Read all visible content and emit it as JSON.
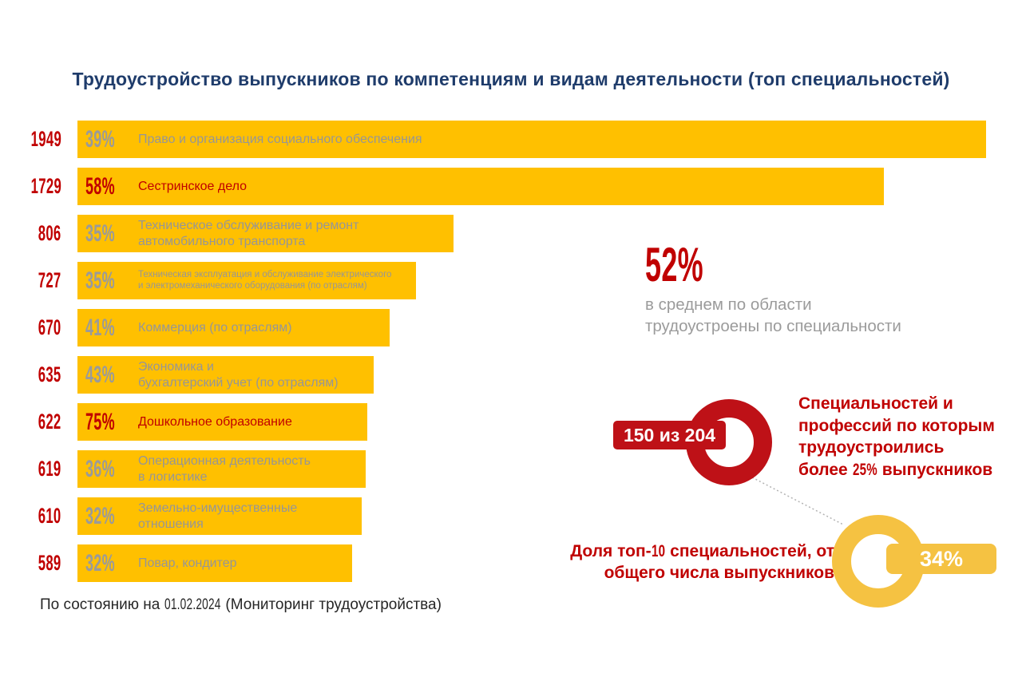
{
  "title": "Трудоустройство выпускников по компетенциям и видам деятельности (топ специальностей)",
  "colors": {
    "bar_yellow": "#ffc000",
    "donut_yellow": "#f5c242",
    "accent_red": "#c00000",
    "donut_red": "#be1117",
    "title_blue": "#1f3c6b",
    "gray_text": "#969696"
  },
  "bars": [
    {
      "count": "1949",
      "value": 1949,
      "pct": "39%",
      "label": "Право и организация  социального  обеспечения",
      "highlight": false,
      "small": false
    },
    {
      "count": "1729",
      "value": 1729,
      "pct": "58%",
      "label": "Сестринское  дело",
      "highlight": true,
      "small": false
    },
    {
      "count": "806",
      "value": 806,
      "pct": "35%",
      "label": "Техническое  обслуживание  и ремонт\nавтомобильного  транспорта",
      "highlight": false,
      "small": false
    },
    {
      "count": "727",
      "value": 727,
      "pct": "35%",
      "label": "Техническая эксплуатация и обслуживание электрического\nи электромеханического  оборудования (по  отраслям)",
      "highlight": false,
      "small": true
    },
    {
      "count": "670",
      "value": 670,
      "pct": "41%",
      "label": "Коммерция  (по отраслям)",
      "highlight": false,
      "small": false
    },
    {
      "count": "635",
      "value": 635,
      "pct": "43%",
      "label": "Экономика и\nбухгалтерский учет (по отраслям)",
      "highlight": false,
      "small": false
    },
    {
      "count": "622",
      "value": 622,
      "pct": "75%",
      "label": "Дошкольное  образование",
      "highlight": true,
      "small": false
    },
    {
      "count": "619",
      "value": 619,
      "pct": "36%",
      "label": "Операционная  деятельность\nв логистике",
      "highlight": false,
      "small": false
    },
    {
      "count": "610",
      "value": 610,
      "pct": "32%",
      "label": "Земельно-имущественные\nотношения",
      "highlight": false,
      "small": false
    },
    {
      "count": "589",
      "value": 589,
      "pct": "32%",
      "label": "Повар, кондитер",
      "highlight": false,
      "small": false
    }
  ],
  "stat": {
    "big": "52%",
    "line1": "в среднем по области",
    "line2": "трудоустроены по специальности"
  },
  "red_donut": {
    "badge": "150 из 204",
    "line1": "Специальностей и",
    "line2": "профессий по которым",
    "line3": "трудоустроились",
    "line4_pre": "более ",
    "line4_num": "25%",
    "line4_post": " выпускников"
  },
  "yellow_donut": {
    "badge": "34%",
    "line1_pre": "Доля топ-",
    "line1_num": "10",
    "line1_post": " специальностей, от",
    "line2": "общего числа выпускников"
  },
  "footer": {
    "pre": "По состоянию на ",
    "date": "01.02.2024",
    "post": " (Мониторинг трудоустройства)"
  },
  "chart_data": [
    {
      "type": "bar",
      "orientation": "horizontal",
      "title": "Трудоустройство выпускников по компетенциям и видам деятельности (топ специальностей)",
      "categories": [
        "Право и организация социального обеспечения",
        "Сестринское дело",
        "Техническое обслуживание и ремонт автомобильного транспорта",
        "Техническая эксплуатация и обслуживание электрического и электромеханического оборудования (по отраслям)",
        "Коммерция (по отраслям)",
        "Экономика и бухгалтерский учет (по отраслям)",
        "Дошкольное образование",
        "Операционная деятельность в логистике",
        "Земельно-имущественные отношения",
        "Повар, кондитер"
      ],
      "values": [
        1949,
        1729,
        806,
        727,
        670,
        635,
        622,
        619,
        610,
        589
      ],
      "percent_labels": [
        "39%",
        "58%",
        "35%",
        "35%",
        "41%",
        "43%",
        "75%",
        "36%",
        "32%",
        "32%"
      ],
      "highlighted_categories": [
        "Сестринское дело",
        "Дошкольное образование"
      ],
      "xlim": [
        0,
        1949
      ],
      "grid": false,
      "bar_color": "#ffc000",
      "footnote": "По состоянию на 01.02.2024 (Мониторинг трудоустройства)"
    },
    {
      "type": "donut",
      "label": "150 из 204",
      "caption": "Специальностей и профессий по которым трудоустроились более 25% выпускников",
      "color": "#be1117"
    },
    {
      "type": "donut",
      "label": "34%",
      "value": 34,
      "caption": "Доля топ-10 специальностей, от общего числа выпускников",
      "color": "#f5c242"
    },
    {
      "type": "stat",
      "value": "52%",
      "caption": "в среднем по области трудоустроены по специальности"
    }
  ]
}
